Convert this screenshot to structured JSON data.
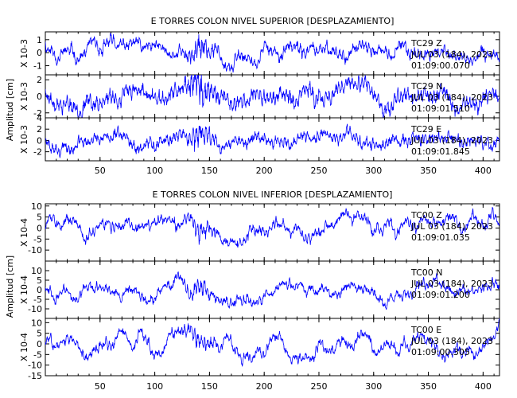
{
  "chart_data": [
    {
      "type": "line",
      "title": "E TORRES COLON NIVEL SUPERIOR [DESPLAZAMIENTO]",
      "ylabel": "Amplitud [cm]",
      "xlim": [
        0,
        415
      ],
      "x_ticks": [
        50,
        100,
        150,
        200,
        250,
        300,
        350,
        400
      ],
      "show_x_labels": true,
      "color": "#0000ff",
      "panels": [
        {
          "scale_label": "X 10-3",
          "ylim": [
            -1.7,
            1.6
          ],
          "y_ticks": [
            -1,
            0,
            1
          ],
          "annotation": [
            "TC29  Z",
            "JUL 03 (184), 2023",
            "01:09:00.070"
          ],
          "amp": 0.55,
          "hf": 0.6,
          "seed": 11
        },
        {
          "scale_label": "X 10-3",
          "ylim": [
            -2.6,
            2.6
          ],
          "y_ticks": [
            -2,
            0,
            2
          ],
          "annotation": [
            "TC29  N",
            "JUL 03 (184), 2023",
            "01:09:01.510"
          ],
          "amp": 0.8,
          "hf": 1.0,
          "seed": 23
        },
        {
          "scale_label": "X 10-3",
          "ylim": [
            -3.6,
            4.0
          ],
          "y_ticks": [
            -2,
            0,
            2,
            4
          ],
          "annotation": [
            "TC29  E",
            "JUL 03 (184), 2023",
            "01:09:01.845"
          ],
          "amp": 1.0,
          "hf": 0.9,
          "seed": 37
        }
      ]
    },
    {
      "type": "line",
      "title": "E TORRES COLON NIVEL INFERIOR [DESPLAZAMIENTO]",
      "ylabel": "Amplitud [cm]",
      "xlim": [
        0,
        415
      ],
      "x_ticks": [
        50,
        100,
        150,
        200,
        250,
        300,
        350,
        400
      ],
      "show_x_labels": true,
      "color": "#0000ff",
      "panels": [
        {
          "scale_label": "X 10-4",
          "ylim": [
            -15,
            11
          ],
          "y_ticks": [
            -10,
            -5,
            0,
            5,
            10
          ],
          "annotation": [
            "TC00  Z",
            "JUL 03 (184), 2023",
            "01:09:01.035"
          ],
          "amp": 3.5,
          "hf": 0.45,
          "seed": 51
        },
        {
          "scale_label": "X 10-4",
          "ylim": [
            -15,
            15
          ],
          "y_ticks": [
            -10,
            -5,
            0,
            5,
            10
          ],
          "annotation": [
            "TC00  N",
            "JUL 03 (184), 2023",
            "01:09:01.200"
          ],
          "amp": 3.5,
          "hf": 0.45,
          "seed": 67
        },
        {
          "scale_label": "X 10-4",
          "ylim": [
            -15,
            12
          ],
          "y_ticks": [
            -15,
            -10,
            -5,
            0,
            5,
            10
          ],
          "annotation": [
            "TC00  E",
            "JUL 03 (184), 2023",
            "01:09:00.305"
          ],
          "amp": 3.5,
          "hf": 0.45,
          "seed": 83
        }
      ]
    }
  ]
}
